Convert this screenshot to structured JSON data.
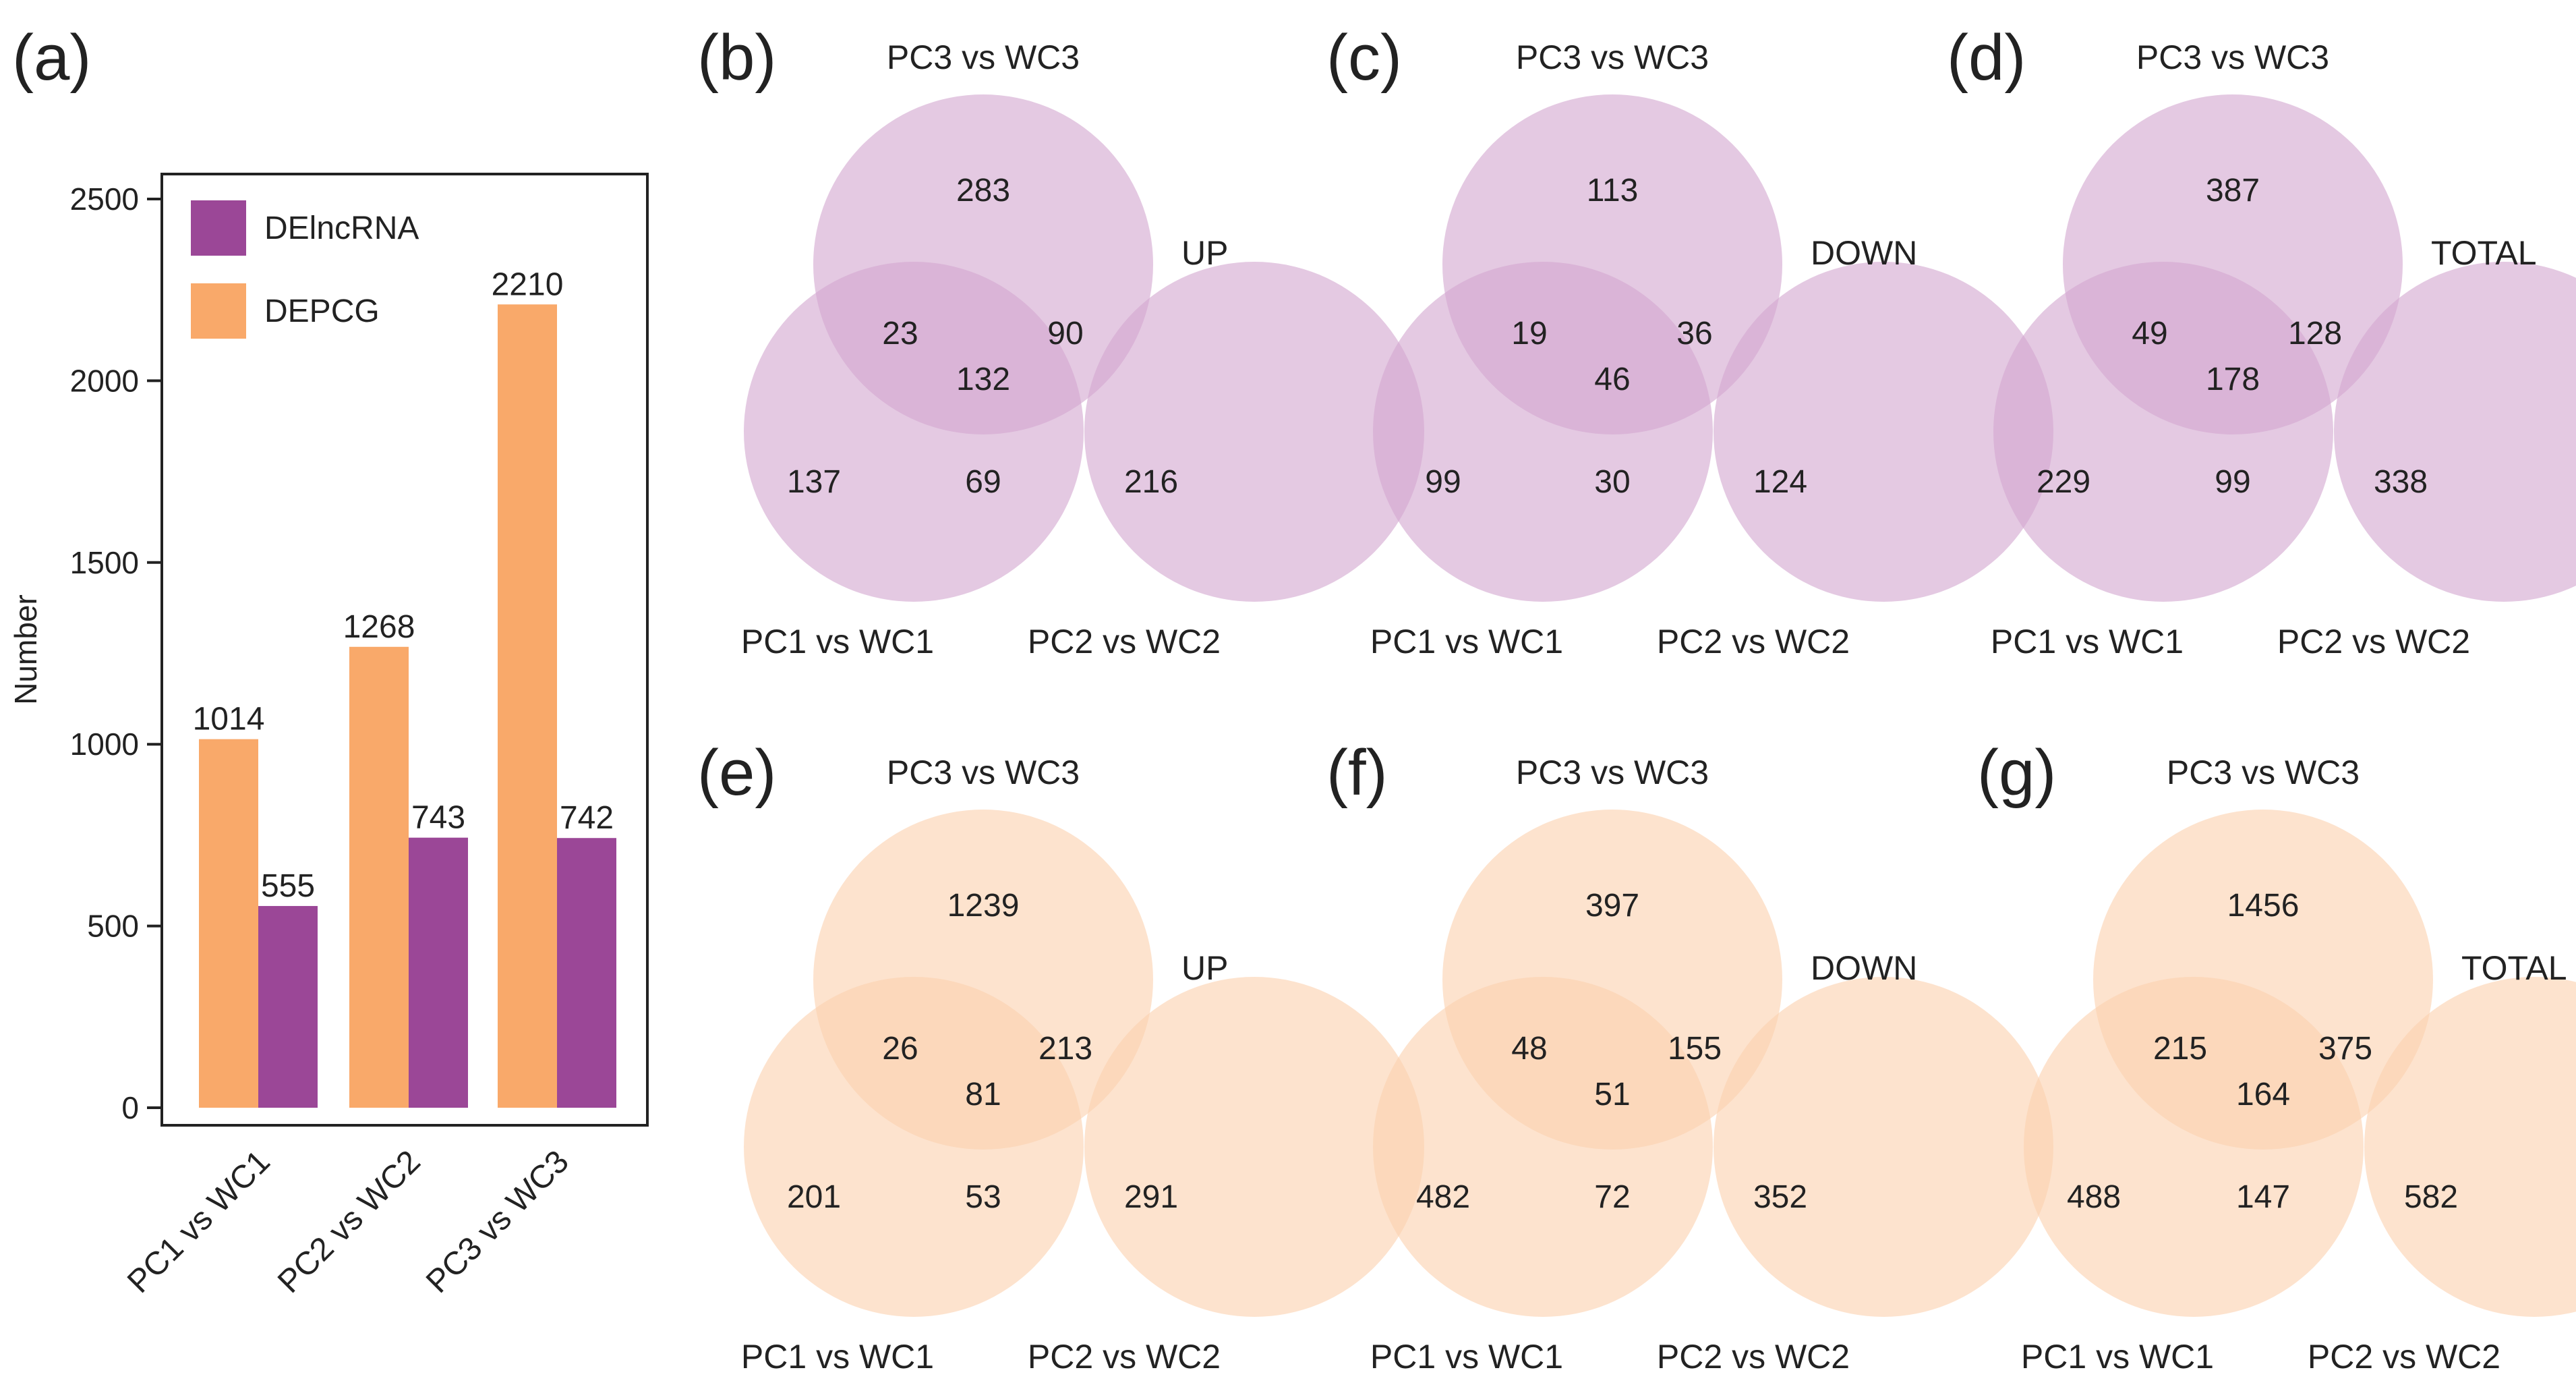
{
  "colors": {
    "delncrna": "#9B4797",
    "depcg": "#F9A96A",
    "venn_purple": "#D3A8D1",
    "venn_orange": "#FCD2B0",
    "axis": "#222222"
  },
  "chart_data": [
    {
      "type": "bar",
      "panel": "(a)",
      "title": "",
      "xlabel": "",
      "ylabel": "Number",
      "ylim": [
        0,
        2700
      ],
      "yticks": [
        0,
        500,
        1000,
        1500,
        2000,
        2500
      ],
      "categories": [
        "PC1 vs WC1",
        "PC2 vs WC2",
        "PC3 vs WC3"
      ],
      "series": [
        {
          "name": "DEPCG",
          "color": "#F9A96A",
          "values": [
            1014,
            1268,
            2210
          ]
        },
        {
          "name": "DElncRNA",
          "color": "#9B4797",
          "values": [
            555,
            743,
            742
          ]
        }
      ],
      "legend": [
        "DElncRNA",
        "DEPCG"
      ],
      "legend_position": "top-left"
    },
    {
      "type": "venn",
      "panel": "(b)",
      "label": "UP",
      "sets": [
        "PC3 vs WC3",
        "PC1 vs WC1",
        "PC2 vs WC2"
      ],
      "color": "purple",
      "regions": {
        "top": "283",
        "left": "137",
        "right": "216",
        "top_left": "23",
        "top_right": "90",
        "left_right": "69",
        "center": "132"
      }
    },
    {
      "type": "venn",
      "panel": "(c)",
      "label": "DOWN",
      "sets": [
        "PC3 vs WC3",
        "PC1 vs WC1",
        "PC2 vs WC2"
      ],
      "color": "purple",
      "regions": {
        "top": "113",
        "left": "99",
        "right": "124",
        "top_left": "19",
        "top_right": "36",
        "left_right": "30",
        "center": "46"
      }
    },
    {
      "type": "venn",
      "panel": "(d)",
      "label": "TOTAL",
      "sets": [
        "PC3 vs WC3",
        "PC1 vs WC1",
        "PC2 vs WC2"
      ],
      "color": "purple",
      "regions": {
        "top": "387",
        "left": "229",
        "right": "338",
        "top_left": "49",
        "top_right": "128",
        "left_right": "99",
        "center": "178"
      }
    },
    {
      "type": "venn",
      "panel": "(e)",
      "label": "UP",
      "sets": [
        "PC3 vs WC3",
        "PC1 vs WC1",
        "PC2 vs WC2"
      ],
      "color": "orange",
      "regions": {
        "top": "1239",
        "left": "201",
        "right": "291",
        "top_left": "26",
        "top_right": "213",
        "left_right": "53",
        "center": "81"
      }
    },
    {
      "type": "venn",
      "panel": "(f)",
      "label": "DOWN",
      "sets": [
        "PC3 vs WC3",
        "PC1 vs WC1",
        "PC2 vs WC2"
      ],
      "color": "orange",
      "regions": {
        "top": "397",
        "left": "482",
        "right": "352",
        "top_left": "48",
        "top_right": "155",
        "left_right": "72",
        "center": "51"
      }
    },
    {
      "type": "venn",
      "panel": "(g)",
      "label": "TOTAL",
      "sets": [
        "PC3 vs WC3",
        "PC1 vs WC1",
        "PC2 vs WC2"
      ],
      "color": "orange",
      "regions": {
        "top": "1456",
        "left": "488",
        "right": "582",
        "top_left": "215",
        "top_right": "375",
        "left_right": "147",
        "center": "164"
      }
    }
  ]
}
